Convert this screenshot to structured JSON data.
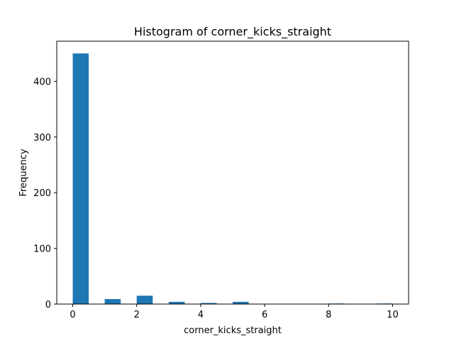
{
  "chart_data": {
    "type": "bar",
    "title": "Histogram of corner_kicks_straight",
    "xlabel": "corner_kicks_straight",
    "ylabel": "Frequency",
    "xlim": [
      -0.5,
      10.5
    ],
    "ylim": [
      0,
      472
    ],
    "x_ticks": [
      0,
      2,
      4,
      6,
      8,
      10
    ],
    "y_ticks": [
      0,
      100,
      200,
      300,
      400
    ],
    "bar_color": "#1f77b4",
    "bin_width": 0.5,
    "bins": [
      {
        "x0": 0.0,
        "x1": 0.5,
        "value": 450
      },
      {
        "x0": 1.0,
        "x1": 1.5,
        "value": 9
      },
      {
        "x0": 2.0,
        "x1": 2.5,
        "value": 15
      },
      {
        "x0": 3.0,
        "x1": 3.5,
        "value": 4
      },
      {
        "x0": 4.0,
        "x1": 4.5,
        "value": 2
      },
      {
        "x0": 5.0,
        "x1": 5.5,
        "value": 4
      },
      {
        "x0": 8.0,
        "x1": 8.5,
        "value": 1
      },
      {
        "x0": 9.5,
        "x1": 10.0,
        "value": 1
      }
    ]
  }
}
